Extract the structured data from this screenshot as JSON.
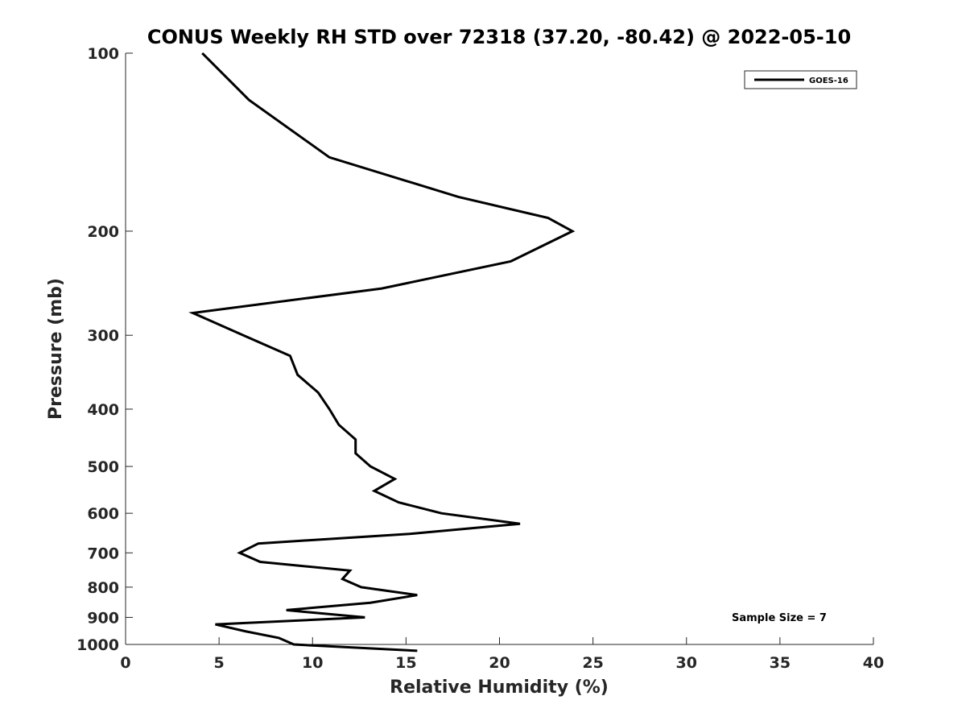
{
  "chart_data": {
    "type": "line",
    "title": "CONUS Weekly RH STD over 72318 (37.20, -80.42) @ 2022-05-10",
    "xlabel": "Relative Humidity (%)",
    "ylabel": "Pressure (mb)",
    "xlim": [
      0,
      40
    ],
    "ylim": [
      100,
      1000
    ],
    "y_scale": "log",
    "y_reversed": true,
    "grid": false,
    "legend_position": "top-right",
    "x_ticks": [
      "0",
      "5",
      "10",
      "15",
      "20",
      "25",
      "30",
      "35",
      "40"
    ],
    "y_ticks": [
      "100",
      "200",
      "300",
      "400",
      "500",
      "600",
      "700",
      "800",
      "900",
      "1000"
    ],
    "series": [
      {
        "name": "GOES-16",
        "color": "#000000",
        "points": [
          {
            "x": 4.1,
            "y": 100
          },
          {
            "x": 6.6,
            "y": 120
          },
          {
            "x": 10.9,
            "y": 150
          },
          {
            "x": 17.8,
            "y": 175
          },
          {
            "x": 22.6,
            "y": 190
          },
          {
            "x": 23.9,
            "y": 200
          },
          {
            "x": 20.6,
            "y": 225
          },
          {
            "x": 13.7,
            "y": 250
          },
          {
            "x": 3.6,
            "y": 275
          },
          {
            "x": 6.3,
            "y": 300
          },
          {
            "x": 8.8,
            "y": 325
          },
          {
            "x": 9.2,
            "y": 350
          },
          {
            "x": 10.3,
            "y": 375
          },
          {
            "x": 10.9,
            "y": 400
          },
          {
            "x": 11.4,
            "y": 425
          },
          {
            "x": 12.3,
            "y": 450
          },
          {
            "x": 12.3,
            "y": 475
          },
          {
            "x": 13.1,
            "y": 500
          },
          {
            "x": 14.4,
            "y": 525
          },
          {
            "x": 13.3,
            "y": 550
          },
          {
            "x": 14.6,
            "y": 575
          },
          {
            "x": 16.9,
            "y": 600
          },
          {
            "x": 21.1,
            "y": 625
          },
          {
            "x": 15.2,
            "y": 650
          },
          {
            "x": 7.1,
            "y": 675
          },
          {
            "x": 6.1,
            "y": 700
          },
          {
            "x": 7.2,
            "y": 725
          },
          {
            "x": 12.0,
            "y": 750
          },
          {
            "x": 11.6,
            "y": 775
          },
          {
            "x": 12.6,
            "y": 800
          },
          {
            "x": 15.6,
            "y": 825
          },
          {
            "x": 13.1,
            "y": 850
          },
          {
            "x": 8.6,
            "y": 875
          },
          {
            "x": 12.8,
            "y": 900
          },
          {
            "x": 4.8,
            "y": 925
          },
          {
            "x": 6.4,
            "y": 950
          },
          {
            "x": 8.2,
            "y": 975
          },
          {
            "x": 9.0,
            "y": 1000
          },
          {
            "x": 15.6,
            "y": 1025
          }
        ]
      }
    ],
    "annotations": [
      "Sample Size = 7"
    ]
  }
}
